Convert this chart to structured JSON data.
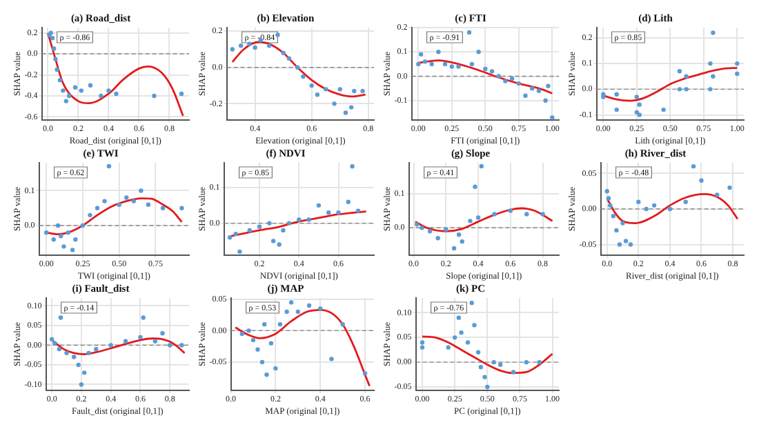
{
  "chart_data": [
    {
      "type": "scatter",
      "title": "(a) Road_dist",
      "xlabel": "Road_dist (original [0,1])",
      "ylabel": "SHAP value",
      "annotations": [
        "ρ = -0.86"
      ],
      "grid": true,
      "marker": "circle",
      "xlim": [
        -0.04,
        0.93
      ],
      "xticks": [
        {
          "value": 0,
          "label": "0.0"
        },
        0.2,
        0.4,
        0.6,
        0.8
      ],
      "ylim": [
        -0.63,
        0.25
      ],
      "yticks": [
        -0.6,
        -0.4,
        -0.2,
        {
          "value": 0,
          "label": "0.0"
        },
        0.2
      ],
      "ref_lines": [
        {
          "axis": "y",
          "value": 0,
          "color": "#888888",
          "line_style": "dashed"
        }
      ],
      "series": [
        {
          "type": "scatter",
          "color": "#5b9bd5",
          "x": [
            0.01,
            0.02,
            0.03,
            0.04,
            0.05,
            0.06,
            0.08,
            0.1,
            0.12,
            0.14,
            0.18,
            0.22,
            0.28,
            0.35,
            0.4,
            0.45,
            0.7,
            0.88
          ],
          "values": [
            0.18,
            0.2,
            0.15,
            0.05,
            -0.05,
            -0.15,
            -0.25,
            -0.35,
            -0.45,
            -0.4,
            -0.32,
            -0.35,
            -0.3,
            -0.4,
            -0.35,
            -0.38,
            -0.4,
            -0.38
          ]
        },
        {
          "type": "line",
          "marker": "none",
          "color": "#e31a1c",
          "x": [
            0,
            0.05,
            0.1,
            0.2,
            0.27,
            0.4,
            0.5,
            0.6,
            0.66,
            0.75,
            0.82,
            0.89
          ],
          "values": [
            0.2,
            -0.05,
            -0.28,
            -0.45,
            -0.47,
            -0.38,
            -0.24,
            -0.14,
            -0.12,
            -0.18,
            -0.33,
            -0.59
          ]
        }
      ]
    },
    {
      "type": "scatter",
      "title": "(b) Elevation",
      "xlabel": "Elevation (original [0,1])",
      "ylabel": "SHAP value",
      "annotations": [
        "ρ = -0.84"
      ],
      "grid": true,
      "marker": "circle",
      "xlim": [
        0.3,
        0.82
      ],
      "xticks": [
        0.4,
        0.6,
        0.8
      ],
      "ylim": [
        -0.29,
        0.22
      ],
      "yticks": [
        -0.2,
        {
          "value": 0,
          "label": "0.0"
        },
        0.2
      ],
      "ref_lines": [
        {
          "axis": "y",
          "value": 0,
          "color": "#888888",
          "line_style": "dashed"
        }
      ],
      "series": [
        {
          "type": "scatter",
          "color": "#5b9bd5",
          "x": [
            0.32,
            0.35,
            0.38,
            0.4,
            0.42,
            0.45,
            0.48,
            0.5,
            0.52,
            0.55,
            0.57,
            0.6,
            0.62,
            0.65,
            0.68,
            0.7,
            0.72,
            0.75,
            0.78,
            0.74
          ],
          "values": [
            0.1,
            0.12,
            0.13,
            0.11,
            0.15,
            0.12,
            0.18,
            0.08,
            0.05,
            0,
            -0.05,
            -0.1,
            -0.15,
            -0.12,
            -0.2,
            -0.12,
            -0.25,
            -0.13,
            -0.13,
            -0.22
          ]
        },
        {
          "type": "line",
          "marker": "none",
          "color": "#e31a1c",
          "x": [
            0.32,
            0.36,
            0.41,
            0.45,
            0.5,
            0.55,
            0.6,
            0.65,
            0.7,
            0.74,
            0.79
          ],
          "values": [
            0.03,
            0.1,
            0.14,
            0.13,
            0.08,
            0,
            -0.07,
            -0.12,
            -0.15,
            -0.16,
            -0.15
          ]
        }
      ]
    },
    {
      "type": "scatter",
      "title": "(c) FTI",
      "xlabel": "FTI (original [0,1])",
      "ylabel": "SHAP value",
      "annotations": [
        "ρ = -0.91"
      ],
      "grid": true,
      "marker": "circle",
      "xlim": [
        -0.05,
        1.05
      ],
      "xticks": [
        {
          "value": 0,
          "label": "0.00"
        },
        0.25,
        {
          "value": 0.5,
          "label": "0.50"
        },
        0.75,
        {
          "value": 1,
          "label": "1.00"
        }
      ],
      "ylim": [
        -0.18,
        0.2
      ],
      "yticks": [
        -0.1,
        {
          "value": 0,
          "label": "0.0"
        },
        0.1,
        0.2
      ],
      "ref_lines": [
        {
          "axis": "y",
          "value": 0,
          "color": "#888888",
          "line_style": "dashed"
        }
      ],
      "series": [
        {
          "type": "scatter",
          "color": "#5b9bd5",
          "x": [
            0,
            0.02,
            0.05,
            0.1,
            0.15,
            0.2,
            0.25,
            0.3,
            0.38,
            0.4,
            0.45,
            0.5,
            0.55,
            0.6,
            0.65,
            0.7,
            0.75,
            0.8,
            0.85,
            0.9,
            0.95,
            1,
            0.97
          ],
          "values": [
            0.05,
            0.09,
            0.06,
            0.05,
            0.1,
            0.05,
            0.04,
            0.04,
            0.18,
            0.05,
            0.1,
            0.03,
            0.02,
            0,
            -0.02,
            -0.01,
            -0.03,
            -0.08,
            -0.05,
            -0.06,
            -0.1,
            -0.17,
            -0.04
          ]
        },
        {
          "type": "line",
          "marker": "none",
          "color": "#e31a1c",
          "x": [
            0,
            0.15,
            0.3,
            0.45,
            0.6,
            0.75,
            0.9,
            1
          ],
          "values": [
            0.055,
            0.065,
            0.05,
            0.025,
            -0.005,
            -0.03,
            -0.05,
            -0.07
          ]
        }
      ]
    },
    {
      "type": "scatter",
      "title": "(d) Lith",
      "xlabel": "Lith (original [0,1])",
      "ylabel": "SHAP value",
      "annotations": [
        "ρ = 0.85"
      ],
      "grid": true,
      "marker": "circle",
      "xlim": [
        -0.05,
        1.05
      ],
      "xticks": [
        {
          "value": 0,
          "label": "0.00"
        },
        0.25,
        {
          "value": 0.5,
          "label": "0.50"
        },
        0.75,
        {
          "value": 1,
          "label": "1.00"
        }
      ],
      "ylim": [
        -0.12,
        0.24
      ],
      "yticks": [
        -0.1,
        {
          "value": 0,
          "label": "0.0"
        },
        0.1,
        0.2
      ],
      "ref_lines": [
        {
          "axis": "y",
          "value": 0,
          "color": "#888888",
          "line_style": "dashed"
        }
      ],
      "series": [
        {
          "type": "scatter",
          "color": "#5b9bd5",
          "x": [
            0,
            0,
            0.1,
            0.1,
            0.25,
            0.25,
            0.27,
            0.27,
            0.45,
            0.57,
            0.57,
            0.62,
            0.62,
            0.8,
            0.8,
            0.82,
            0.82,
            1,
            1
          ],
          "values": [
            -0.03,
            -0.02,
            -0.02,
            -0.08,
            -0.03,
            -0.09,
            -0.06,
            -0.1,
            -0.08,
            0.07,
            0,
            0.05,
            0,
            0.1,
            0,
            0.22,
            0.05,
            0.1,
            0.06
          ]
        },
        {
          "type": "line",
          "marker": "none",
          "color": "#e31a1c",
          "x": [
            0,
            0.1,
            0.2,
            0.3,
            0.4,
            0.5,
            0.6,
            0.7,
            0.8,
            0.9,
            1
          ],
          "values": [
            -0.025,
            -0.04,
            -0.045,
            -0.035,
            -0.01,
            0.02,
            0.04,
            0.055,
            0.07,
            0.08,
            0.083
          ]
        }
      ]
    },
    {
      "type": "scatter",
      "title": "(e) TWI",
      "xlabel": "TWI (original [0,1])",
      "ylabel": "SHAP value",
      "annotations": [
        "ρ = 0.62"
      ],
      "grid": true,
      "marker": "circle",
      "xlim": [
        -0.05,
        0.98
      ],
      "xticks": [
        {
          "value": 0,
          "label": "0.00"
        },
        0.25,
        {
          "value": 0.5,
          "label": "0.50"
        },
        0.75
      ],
      "ylim": [
        -0.085,
        0.18
      ],
      "yticks": [
        {
          "value": 0,
          "label": "0.0"
        },
        0.1
      ],
      "ref_lines": [
        {
          "axis": "y",
          "value": 0,
          "color": "#888888",
          "line_style": "dashed"
        }
      ],
      "series": [
        {
          "type": "scatter",
          "color": "#5b9bd5",
          "x": [
            0,
            0.05,
            0.08,
            0.1,
            0.12,
            0.15,
            0.18,
            0.2,
            0.25,
            0.3,
            0.35,
            0.4,
            0.43,
            0.5,
            0.55,
            0.6,
            0.65,
            0.7,
            0.8,
            0.93
          ],
          "values": [
            -0.02,
            -0.04,
            0,
            -0.03,
            -0.06,
            -0.02,
            -0.07,
            -0.04,
            0,
            0.03,
            0.05,
            0.07,
            0.17,
            0.06,
            0.08,
            0.07,
            0.1,
            0.06,
            0.05,
            0.05
          ]
        },
        {
          "type": "line",
          "marker": "none",
          "color": "#e31a1c",
          "x": [
            0,
            0.08,
            0.15,
            0.25,
            0.35,
            0.45,
            0.55,
            0.65,
            0.72,
            0.8,
            0.87,
            0.93
          ],
          "values": [
            -0.02,
            -0.025,
            -0.02,
            0,
            0.03,
            0.055,
            0.07,
            0.078,
            0.077,
            0.06,
            0.04,
            0.01
          ]
        }
      ]
    },
    {
      "type": "scatter",
      "title": "(f) NDVI",
      "xlabel": "NDVI (original [0,1])",
      "ylabel": "SHAP value",
      "annotations": [
        "ρ = 0.85"
      ],
      "grid": true,
      "marker": "circle",
      "xlim": [
        0.02,
        0.78
      ],
      "xticks": [
        0.2,
        0.4,
        0.6
      ],
      "ylim": [
        -0.09,
        0.17
      ],
      "yticks": [
        {
          "value": 0,
          "label": "0.0"
        },
        0.1
      ],
      "ref_lines": [
        {
          "axis": "y",
          "value": 0,
          "color": "#888888",
          "line_style": "dashed"
        }
      ],
      "series": [
        {
          "type": "scatter",
          "color": "#5b9bd5",
          "x": [
            0.05,
            0.08,
            0.1,
            0.15,
            0.2,
            0.25,
            0.27,
            0.3,
            0.32,
            0.35,
            0.4,
            0.45,
            0.5,
            0.55,
            0.6,
            0.65,
            0.67,
            0.7
          ],
          "values": [
            -0.04,
            -0.03,
            -0.08,
            -0.02,
            -0.01,
            0,
            -0.05,
            -0.06,
            -0.02,
            0,
            0.01,
            0.01,
            0.05,
            0.03,
            0.03,
            0.06,
            0.16,
            0.035
          ]
        },
        {
          "type": "line",
          "marker": "none",
          "color": "#e31a1c",
          "x": [
            0.05,
            0.2,
            0.3,
            0.4,
            0.5,
            0.6,
            0.74
          ],
          "values": [
            -0.037,
            -0.02,
            -0.01,
            0.005,
            0.015,
            0.025,
            0.033
          ]
        }
      ]
    },
    {
      "type": "scatter",
      "title": "(g) Slope",
      "xlabel": "Slope (original [0,1])",
      "ylabel": "SHAP value",
      "annotations": [
        "ρ = 0.41"
      ],
      "grid": true,
      "marker": "circle",
      "xlim": [
        -0.03,
        0.9
      ],
      "xticks": [
        {
          "value": 0,
          "label": "0.0"
        },
        0.2,
        0.4,
        0.6,
        0.8
      ],
      "ylim": [
        -0.08,
        0.19
      ],
      "yticks": [
        {
          "value": 0,
          "label": "0.0"
        },
        0.1
      ],
      "ref_lines": [
        {
          "axis": "y",
          "value": 0,
          "color": "#888888",
          "line_style": "dashed"
        }
      ],
      "series": [
        {
          "type": "scatter",
          "color": "#5b9bd5",
          "x": [
            0.02,
            0.05,
            0.1,
            0.15,
            0.2,
            0.25,
            0.28,
            0.3,
            0.35,
            0.38,
            0.4,
            0.42,
            0.5,
            0.6,
            0.7,
            0.8
          ],
          "values": [
            0.01,
            0,
            -0.01,
            -0.03,
            -0.005,
            -0.06,
            -0.02,
            -0.04,
            0.02,
            0.12,
            0.03,
            0.18,
            0.04,
            0.05,
            0.04,
            0.04
          ]
        },
        {
          "type": "line",
          "marker": "none",
          "color": "#e31a1c",
          "x": [
            0.01,
            0.08,
            0.2,
            0.3,
            0.4,
            0.5,
            0.6,
            0.67,
            0.75,
            0.86
          ],
          "values": [
            0.018,
            0,
            -0.01,
            -0.003,
            0.018,
            0.038,
            0.053,
            0.057,
            0.05,
            0.02
          ]
        }
      ]
    },
    {
      "type": "scatter",
      "title": "(h) River_dist",
      "xlabel": "River_dist (original [0,1])",
      "ylabel": "SHAP value",
      "annotations": [
        "ρ = -0.48"
      ],
      "grid": true,
      "marker": "circle",
      "xlim": [
        -0.04,
        0.87
      ],
      "xticks": [
        {
          "value": 0,
          "label": "0.0"
        },
        0.2,
        0.4,
        0.6,
        0.8
      ],
      "ylim": [
        -0.065,
        0.065
      ],
      "yticks": [
        -0.05,
        {
          "value": 0,
          "label": "0.00"
        },
        0.05
      ],
      "ref_lines": [
        {
          "axis": "y",
          "value": 0,
          "color": "#888888",
          "line_style": "dashed"
        }
      ],
      "series": [
        {
          "type": "scatter",
          "color": "#5b9bd5",
          "x": [
            0,
            0.01,
            0.02,
            0.04,
            0.06,
            0.08,
            0.1,
            0.12,
            0.15,
            0.2,
            0.25,
            0.3,
            0.4,
            0.5,
            0.55,
            0.6,
            0.7,
            0.78
          ],
          "values": [
            0.025,
            0.015,
            0.005,
            -0.01,
            -0.03,
            -0.05,
            -0.02,
            -0.045,
            -0.05,
            0.01,
            0,
            0.005,
            0,
            0.01,
            0.06,
            0.04,
            0.02,
            0.03
          ]
        },
        {
          "type": "line",
          "marker": "none",
          "color": "#e31a1c",
          "x": [
            0,
            0.05,
            0.1,
            0.18,
            0.3,
            0.4,
            0.5,
            0.62,
            0.7,
            0.77,
            0.83
          ],
          "values": [
            0.015,
            -0.005,
            -0.017,
            -0.02,
            -0.01,
            0.005,
            0.016,
            0.021,
            0.017,
            0.005,
            -0.014
          ]
        }
      ]
    },
    {
      "type": "scatter",
      "title": "(i) Fault_dist",
      "xlabel": "Fault_dist (original [0,1])",
      "ylabel": "SHAP value",
      "annotations": [
        "ρ = -0.14"
      ],
      "grid": true,
      "marker": "circle",
      "xlim": [
        -0.04,
        0.93
      ],
      "xticks": [
        {
          "value": 0,
          "label": "0.0"
        },
        0.2,
        0.4,
        0.6,
        0.8
      ],
      "ylim": [
        -0.115,
        0.12
      ],
      "yticks": [
        {
          "value": -0.1,
          "label": "-0.10"
        },
        -0.05,
        {
          "value": 0,
          "label": "0.00"
        },
        0.05,
        {
          "value": 0.1,
          "label": "0.10"
        }
      ],
      "ref_lines": [
        {
          "axis": "y",
          "value": 0,
          "color": "#888888",
          "line_style": "dashed"
        }
      ],
      "series": [
        {
          "type": "scatter",
          "color": "#5b9bd5",
          "x": [
            0,
            0.02,
            0.05,
            0.06,
            0.1,
            0.15,
            0.18,
            0.2,
            0.22,
            0.25,
            0.3,
            0.4,
            0.5,
            0.6,
            0.62,
            0.7,
            0.75,
            0.8,
            0.88
          ],
          "values": [
            0.015,
            0.005,
            -0.01,
            0.07,
            -0.02,
            -0.03,
            -0.05,
            -0.1,
            -0.07,
            -0.02,
            -0.01,
            0,
            0.01,
            0.02,
            0.07,
            0.01,
            0.03,
            0,
            0
          ]
        },
        {
          "type": "line",
          "marker": "none",
          "color": "#e31a1c",
          "x": [
            0,
            0.08,
            0.15,
            0.22,
            0.3,
            0.4,
            0.5,
            0.6,
            0.68,
            0.75,
            0.82,
            0.9
          ],
          "values": [
            0.013,
            -0.01,
            -0.02,
            -0.023,
            -0.018,
            -0.008,
            0.003,
            0.013,
            0.017,
            0.015,
            0.005,
            -0.02
          ]
        }
      ]
    },
    {
      "type": "scatter",
      "title": "(j) MAP",
      "xlabel": "MAP (original [0,1])",
      "ylabel": "SHAP value",
      "annotations": [
        "ρ = 0.53"
      ],
      "grid": true,
      "marker": "circle",
      "xlim": [
        0,
        0.64
      ],
      "xticks": [
        {
          "value": 0,
          "label": "0.0"
        },
        0.2,
        0.4,
        0.6
      ],
      "ylim": [
        -0.095,
        0.052
      ],
      "yticks": [
        -0.05,
        {
          "value": 0,
          "label": "0.00"
        },
        0.05
      ],
      "ref_lines": [
        {
          "axis": "y",
          "value": 0,
          "color": "#888888",
          "line_style": "dashed"
        }
      ],
      "series": [
        {
          "type": "scatter",
          "color": "#5b9bd5",
          "x": [
            0.05,
            0.08,
            0.1,
            0.12,
            0.14,
            0.15,
            0.16,
            0.18,
            0.2,
            0.22,
            0.25,
            0.27,
            0.3,
            0.35,
            0.4,
            0.45,
            0.5,
            0.6
          ],
          "values": [
            -0.005,
            0,
            -0.015,
            -0.03,
            -0.05,
            0.01,
            -0.07,
            -0.02,
            -0.06,
            0.01,
            0.03,
            0.045,
            0.03,
            0.04,
            0.035,
            -0.045,
            0.01,
            -0.068
          ]
        },
        {
          "type": "line",
          "marker": "none",
          "color": "#e31a1c",
          "x": [
            0.02,
            0.08,
            0.13,
            0.2,
            0.27,
            0.34,
            0.4,
            0.45,
            0.5,
            0.55,
            0.6,
            0.62
          ],
          "values": [
            0.005,
            -0.007,
            -0.012,
            -0.005,
            0.015,
            0.03,
            0.033,
            0.028,
            0.01,
            -0.025,
            -0.07,
            -0.088
          ]
        }
      ]
    },
    {
      "type": "scatter",
      "title": "(k) PC",
      "xlabel": "PC (original [0,1])",
      "ylabel": "SHAP value",
      "annotations": [
        "ρ = -0.76"
      ],
      "grid": true,
      "marker": "circle",
      "xlim": [
        -0.05,
        1.05
      ],
      "xticks": [
        {
          "value": 0,
          "label": "0.00"
        },
        0.25,
        {
          "value": 0.5,
          "label": "0.50"
        },
        0.75,
        {
          "value": 1,
          "label": "1.00"
        }
      ],
      "ylim": [
        -0.057,
        0.13
      ],
      "yticks": [
        -0.05,
        {
          "value": 0,
          "label": "0.00"
        },
        0.05,
        {
          "value": 0.1,
          "label": "0.10"
        }
      ],
      "ref_lines": [
        {
          "axis": "y",
          "value": 0,
          "color": "#888888",
          "line_style": "dashed"
        }
      ],
      "series": [
        {
          "type": "scatter",
          "color": "#5b9bd5",
          "x": [
            0,
            0,
            0.2,
            0.25,
            0.28,
            0.3,
            0.35,
            0.38,
            0.4,
            0.43,
            0.45,
            0.48,
            0.5,
            0.55,
            0.6,
            0.7,
            0.8,
            0.9
          ],
          "values": [
            0.03,
            0.04,
            0.03,
            0.05,
            0.09,
            0.06,
            0.04,
            0.12,
            0.075,
            0.02,
            -0.01,
            -0.03,
            -0.05,
            0,
            -0.005,
            -0.02,
            0,
            0
          ]
        },
        {
          "type": "line",
          "marker": "none",
          "color": "#e31a1c",
          "x": [
            0,
            0.1,
            0.2,
            0.3,
            0.4,
            0.5,
            0.6,
            0.7,
            0.8,
            0.9,
            1
          ],
          "values": [
            0.052,
            0.05,
            0.04,
            0.025,
            0.01,
            -0.005,
            -0.017,
            -0.022,
            -0.02,
            -0.005,
            0.017
          ]
        }
      ]
    }
  ]
}
